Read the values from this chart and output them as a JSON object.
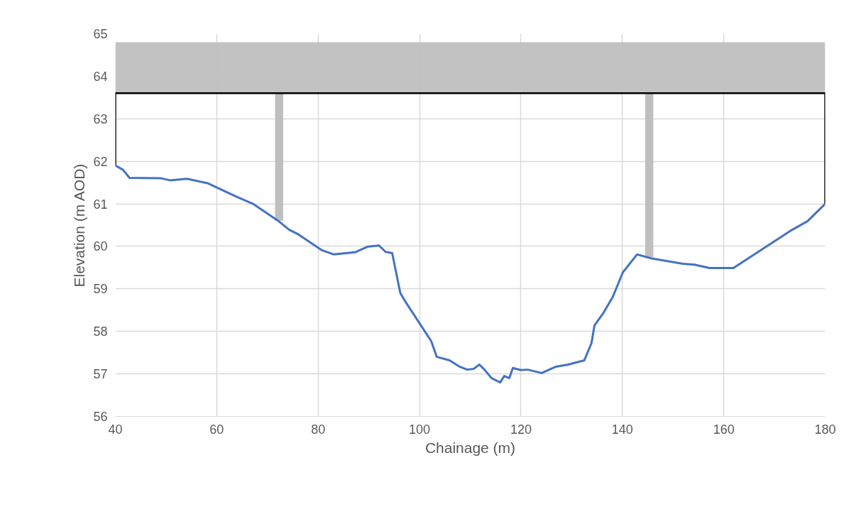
{
  "chart_data": {
    "type": "line",
    "xlabel": "Chainage (m)",
    "ylabel": "Elevation (m AOD)",
    "xlim": [
      40,
      180
    ],
    "xticks": [
      40,
      60,
      80,
      100,
      120,
      140,
      160,
      180
    ],
    "ylim": [
      56,
      65
    ],
    "yticks": [
      56,
      57,
      58,
      59,
      60,
      61,
      62,
      63,
      64,
      65
    ],
    "grid": true,
    "series": [
      {
        "type": "area",
        "color": "#bfbfbf",
        "x": [
          40,
          180
        ],
        "values": [
          null,
          null
        ],
        "lower": [
          63.6,
          63.6
        ],
        "upper": [
          64.8,
          64.8
        ]
      },
      {
        "type": "bar",
        "color": "#bfbfbf",
        "x": [
          72.3,
          145.3
        ],
        "base": [
          60.6,
          59.75
        ],
        "values": [
          3.0,
          3.85
        ]
      },
      {
        "type": "line",
        "color": "#000000",
        "x": [
          40,
          40,
          180,
          180
        ],
        "values": [
          61.9,
          63.6,
          63.6,
          61.0
        ]
      },
      {
        "color": "#4472c4",
        "x": [
          40,
          41.5,
          42.8,
          49,
          50.9,
          54.1,
          58.3,
          64,
          67.3,
          72,
          74.3,
          76.1,
          80.7,
          83.1,
          87.3,
          89.7,
          92,
          93.3,
          94.6,
          96.2,
          97.1,
          98.9,
          102.3,
          103.4,
          105.9,
          107.9,
          109.4,
          110.7,
          111.8,
          112.8,
          114.2,
          115.9,
          116.7,
          117.7,
          118.4,
          120,
          121.3,
          124.1,
          126.9,
          129.3,
          132.5,
          133.9,
          134.5,
          136.3,
          138.1,
          140.1,
          142.9,
          145.6,
          151.9,
          154.2,
          157.2,
          161.9,
          173.5,
          176.5,
          180
        ],
        "values": [
          61.9,
          61.8,
          61.61,
          61.6,
          61.55,
          61.59,
          61.48,
          61.16,
          60.99,
          60.61,
          60.39,
          60.28,
          59.91,
          59.81,
          59.86,
          59.99,
          60.02,
          59.87,
          59.84,
          58.9,
          58.72,
          58.39,
          57.77,
          57.4,
          57.32,
          57.17,
          57.1,
          57.12,
          57.22,
          57.1,
          56.9,
          56.8,
          56.95,
          56.9,
          57.14,
          57.09,
          57.1,
          57.02,
          57.17,
          57.22,
          57.32,
          57.72,
          58.14,
          58.44,
          58.81,
          59.39,
          59.81,
          59.72,
          59.59,
          59.57,
          59.49,
          59.49,
          60.39,
          60.59,
          61.0
        ]
      }
    ]
  }
}
